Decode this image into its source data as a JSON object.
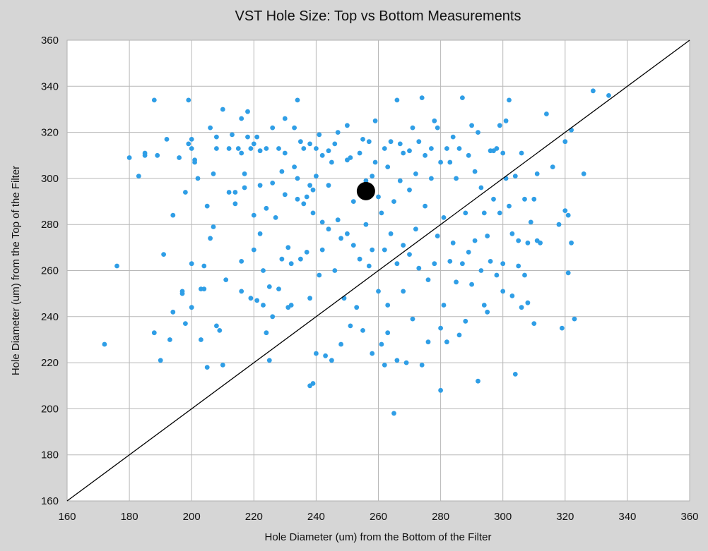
{
  "chart_data": {
    "type": "scatter",
    "title": "VST Hole Size: Top vs Bottom Measurements",
    "xlabel": "Hole Diameter (um) from the Bottom of the Filter",
    "ylabel": "Hole Diameter (um) from the Top of the Filter",
    "xlim": [
      160,
      360
    ],
    "ylim": [
      160,
      360
    ],
    "xticks": [
      "160",
      "180",
      "200",
      "220",
      "240",
      "260",
      "280",
      "300",
      "320",
      "340",
      "360"
    ],
    "yticks": [
      "160",
      "180",
      "200",
      "220",
      "240",
      "260",
      "280",
      "300",
      "320",
      "340",
      "360"
    ],
    "grid": true,
    "legend": "none",
    "colors": {
      "points": "#2f9ee6",
      "mean": "#000000",
      "reference_line": "#000000",
      "plot_background": "#ffffff",
      "page_background": "#d6d6d6"
    },
    "reference_line": {
      "x": [
        160,
        360
      ],
      "y": [
        160,
        360
      ]
    },
    "mean_point": {
      "x": 256,
      "y": 294.5
    },
    "series": [
      {
        "points": [
          [
            172,
            228
          ],
          [
            176,
            262
          ],
          [
            180,
            309
          ],
          [
            183,
            301
          ],
          [
            185,
            310
          ],
          [
            185,
            311
          ],
          [
            188,
            334
          ],
          [
            188,
            233
          ],
          [
            189,
            310
          ],
          [
            190,
            221
          ],
          [
            191,
            267
          ],
          [
            192,
            317
          ],
          [
            193,
            230
          ],
          [
            194,
            242
          ],
          [
            194,
            284
          ],
          [
            196,
            309
          ],
          [
            197,
            251
          ],
          [
            197,
            250
          ],
          [
            198,
            294
          ],
          [
            198,
            237
          ],
          [
            199,
            334
          ],
          [
            199,
            315
          ],
          [
            200,
            317
          ],
          [
            200,
            313
          ],
          [
            200,
            263
          ],
          [
            200,
            244
          ],
          [
            201,
            307
          ],
          [
            201,
            308
          ],
          [
            202,
            300
          ],
          [
            203,
            252
          ],
          [
            203,
            230
          ],
          [
            204,
            252
          ],
          [
            204,
            262
          ],
          [
            205,
            218
          ],
          [
            205,
            288
          ],
          [
            206,
            274
          ],
          [
            206,
            322
          ],
          [
            207,
            302
          ],
          [
            207,
            279
          ],
          [
            208,
            313
          ],
          [
            208,
            318
          ],
          [
            208,
            236
          ],
          [
            209,
            234
          ],
          [
            210,
            330
          ],
          [
            210,
            219
          ],
          [
            211,
            256
          ],
          [
            212,
            294
          ],
          [
            212,
            313
          ],
          [
            213,
            319
          ],
          [
            214,
            294
          ],
          [
            214,
            289
          ],
          [
            215,
            313
          ],
          [
            216,
            326
          ],
          [
            216,
            264
          ],
          [
            216,
            251
          ],
          [
            216,
            311
          ],
          [
            217,
            302
          ],
          [
            217,
            296
          ],
          [
            218,
            329
          ],
          [
            218,
            318
          ],
          [
            219,
            313
          ],
          [
            219,
            248
          ],
          [
            220,
            269
          ],
          [
            220,
            315
          ],
          [
            220,
            284
          ],
          [
            221,
            318
          ],
          [
            221,
            247
          ],
          [
            222,
            297
          ],
          [
            222,
            312
          ],
          [
            222,
            276
          ],
          [
            223,
            245
          ],
          [
            223,
            260
          ],
          [
            224,
            287
          ],
          [
            224,
            313
          ],
          [
            224,
            233
          ],
          [
            225,
            221
          ],
          [
            225,
            253
          ],
          [
            226,
            298
          ],
          [
            226,
            322
          ],
          [
            226,
            240
          ],
          [
            227,
            283
          ],
          [
            228,
            313
          ],
          [
            228,
            252
          ],
          [
            229,
            265
          ],
          [
            229,
            303
          ],
          [
            230,
            311
          ],
          [
            230,
            293
          ],
          [
            230,
            326
          ],
          [
            231,
            244
          ],
          [
            231,
            270
          ],
          [
            232,
            263
          ],
          [
            232,
            245
          ],
          [
            233,
            305
          ],
          [
            233,
            322
          ],
          [
            234,
            300
          ],
          [
            234,
            291
          ],
          [
            234,
            334
          ],
          [
            235,
            316
          ],
          [
            235,
            265
          ],
          [
            236,
            313
          ],
          [
            236,
            289
          ],
          [
            237,
            268
          ],
          [
            237,
            292
          ],
          [
            238,
            210
          ],
          [
            238,
            297
          ],
          [
            238,
            248
          ],
          [
            238,
            315
          ],
          [
            239,
            211
          ],
          [
            239,
            295
          ],
          [
            239,
            285
          ],
          [
            240,
            313
          ],
          [
            240,
            224
          ],
          [
            240,
            301
          ],
          [
            241,
            258
          ],
          [
            241,
            319
          ],
          [
            242,
            281
          ],
          [
            242,
            310
          ],
          [
            242,
            269
          ],
          [
            243,
            223
          ],
          [
            244,
            312
          ],
          [
            244,
            297
          ],
          [
            244,
            278
          ],
          [
            245,
            221
          ],
          [
            245,
            307
          ],
          [
            246,
            315
          ],
          [
            246,
            260
          ],
          [
            247,
            282
          ],
          [
            247,
            320
          ],
          [
            248,
            228
          ],
          [
            248,
            274
          ],
          [
            249,
            248
          ],
          [
            250,
            308
          ],
          [
            250,
            323
          ],
          [
            250,
            276
          ],
          [
            251,
            236
          ],
          [
            251,
            309
          ],
          [
            252,
            290
          ],
          [
            252,
            271
          ],
          [
            253,
            244
          ],
          [
            254,
            265
          ],
          [
            254,
            311
          ],
          [
            255,
            234
          ],
          [
            255,
            317
          ],
          [
            256,
            280
          ],
          [
            256,
            299
          ],
          [
            257,
            262
          ],
          [
            257,
            316
          ],
          [
            258,
            301
          ],
          [
            258,
            224
          ],
          [
            258,
            269
          ],
          [
            259,
            325
          ],
          [
            259,
            307
          ],
          [
            260,
            251
          ],
          [
            260,
            292
          ],
          [
            261,
            285
          ],
          [
            261,
            228
          ],
          [
            262,
            313
          ],
          [
            262,
            269
          ],
          [
            262,
            219
          ],
          [
            263,
            245
          ],
          [
            263,
            233
          ],
          [
            263,
            305
          ],
          [
            264,
            316
          ],
          [
            264,
            276
          ],
          [
            265,
            198
          ],
          [
            265,
            290
          ],
          [
            266,
            263
          ],
          [
            266,
            334
          ],
          [
            266,
            221
          ],
          [
            267,
            299
          ],
          [
            267,
            315
          ],
          [
            268,
            271
          ],
          [
            268,
            311
          ],
          [
            268,
            251
          ],
          [
            269,
            220
          ],
          [
            270,
            312
          ],
          [
            270,
            295
          ],
          [
            270,
            267
          ],
          [
            271,
            239
          ],
          [
            271,
            322
          ],
          [
            272,
            278
          ],
          [
            272,
            302
          ],
          [
            273,
            261
          ],
          [
            273,
            316
          ],
          [
            274,
            335
          ],
          [
            274,
            219
          ],
          [
            275,
            288
          ],
          [
            275,
            310
          ],
          [
            276,
            256
          ],
          [
            276,
            229
          ],
          [
            277,
            300
          ],
          [
            277,
            313
          ],
          [
            278,
            263
          ],
          [
            278,
            325
          ],
          [
            279,
            322
          ],
          [
            279,
            275
          ],
          [
            280,
            235
          ],
          [
            280,
            208
          ],
          [
            280,
            307
          ],
          [
            281,
            283
          ],
          [
            281,
            245
          ],
          [
            282,
            229
          ],
          [
            282,
            313
          ],
          [
            283,
            264
          ],
          [
            283,
            307
          ],
          [
            284,
            318
          ],
          [
            284,
            272
          ],
          [
            285,
            300
          ],
          [
            285,
            255
          ],
          [
            286,
            313
          ],
          [
            286,
            232
          ],
          [
            287,
            263
          ],
          [
            287,
            335
          ],
          [
            288,
            285
          ],
          [
            288,
            238
          ],
          [
            289,
            310
          ],
          [
            289,
            268
          ],
          [
            290,
            323
          ],
          [
            290,
            254
          ],
          [
            291,
            303
          ],
          [
            291,
            273
          ],
          [
            292,
            212
          ],
          [
            292,
            320
          ],
          [
            293,
            260
          ],
          [
            293,
            296
          ],
          [
            294,
            285
          ],
          [
            294,
            245
          ],
          [
            295,
            275
          ],
          [
            295,
            242
          ],
          [
            296,
            312
          ],
          [
            296,
            264
          ],
          [
            297,
            291
          ],
          [
            297,
            312
          ],
          [
            298,
            313
          ],
          [
            298,
            258
          ],
          [
            299,
            323
          ],
          [
            299,
            285
          ],
          [
            300,
            311
          ],
          [
            300,
            251
          ],
          [
            300,
            263
          ],
          [
            301,
            325
          ],
          [
            301,
            300
          ],
          [
            302,
            334
          ],
          [
            302,
            288
          ],
          [
            303,
            276
          ],
          [
            303,
            249
          ],
          [
            304,
            215
          ],
          [
            304,
            301
          ],
          [
            305,
            273
          ],
          [
            305,
            262
          ],
          [
            306,
            311
          ],
          [
            306,
            244
          ],
          [
            307,
            291
          ],
          [
            307,
            258
          ],
          [
            308,
            272
          ],
          [
            308,
            246
          ],
          [
            309,
            281
          ],
          [
            310,
            291
          ],
          [
            310,
            237
          ],
          [
            311,
            273
          ],
          [
            311,
            302
          ],
          [
            312,
            272
          ],
          [
            314,
            328
          ],
          [
            316,
            305
          ],
          [
            318,
            280
          ],
          [
            319,
            235
          ],
          [
            320,
            316
          ],
          [
            320,
            286
          ],
          [
            321,
            259
          ],
          [
            321,
            284
          ],
          [
            322,
            321
          ],
          [
            322,
            272
          ],
          [
            323,
            239
          ],
          [
            326,
            302
          ],
          [
            329,
            338
          ],
          [
            334,
            336
          ]
        ]
      }
    ]
  }
}
